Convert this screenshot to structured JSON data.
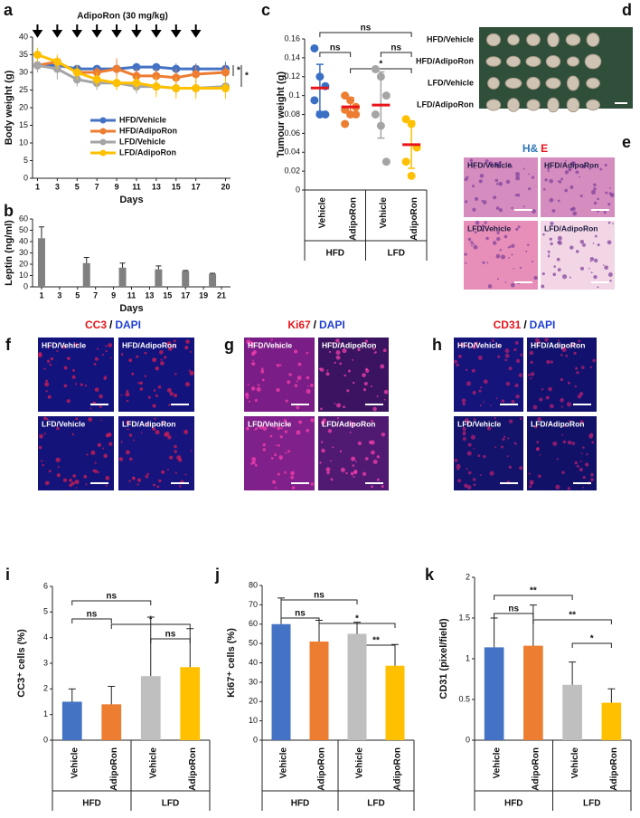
{
  "chart_data": [
    {
      "type": "line",
      "panel_label": "a",
      "annotation": "AdipoRon (30 mg/kg)",
      "dosing_days": [
        1,
        3,
        5,
        7,
        9,
        11,
        13,
        15,
        17
      ],
      "xlabel": "Days",
      "ylabel": "Body weight (g)",
      "x": [
        1,
        3,
        5,
        7,
        9,
        11,
        13,
        15,
        17,
        20
      ],
      "xlim": [
        0.5,
        20.5
      ],
      "xticks": [
        1,
        3,
        5,
        7,
        9,
        11,
        13,
        15,
        17,
        20
      ],
      "ylim": [
        0,
        40
      ],
      "yticks": [
        0,
        5,
        10,
        15,
        20,
        25,
        30,
        35,
        40
      ],
      "series": [
        {
          "name": "HFD/Vehicle",
          "color": "#4472c4",
          "values": [
            32,
            32,
            31,
            31,
            31,
            31.5,
            31.5,
            31,
            31,
            31
          ],
          "errors": [
            1,
            1.5,
            1,
            1,
            1,
            1,
            1,
            1.5,
            1.5,
            2
          ]
        },
        {
          "name": "HFD/AdipoRon",
          "color": "#ed7d31",
          "values": [
            32,
            33,
            30,
            30,
            31,
            29,
            29,
            28.5,
            29.5,
            30
          ],
          "errors": [
            1.5,
            1.5,
            2,
            1.5,
            3,
            2,
            2,
            2.5,
            2.5,
            2
          ]
        },
        {
          "name": "LFD/Vehicle",
          "color": "#a5a5a5",
          "values": [
            32,
            31,
            28,
            27,
            27,
            26,
            26,
            25.5,
            25.5,
            26
          ],
          "errors": [
            2,
            3,
            2,
            2,
            2,
            2,
            2,
            2,
            2,
            2
          ]
        },
        {
          "name": "LFD/AdipoRon",
          "color": "#ffc000",
          "values": [
            35,
            33,
            30,
            28,
            27,
            27,
            26,
            25.5,
            25.5,
            25.5
          ],
          "errors": [
            2,
            2,
            2,
            2,
            2,
            2,
            3,
            3,
            3,
            3
          ]
        }
      ],
      "significance": [
        "*",
        "*"
      ]
    },
    {
      "type": "bar",
      "panel_label": "b",
      "xlabel": "Days",
      "ylabel": "Leptin (ng/ml)",
      "x": [
        1,
        6,
        10,
        14,
        17,
        20
      ],
      "values": [
        43,
        21,
        17,
        15.5,
        14,
        11.5
      ],
      "errors": [
        10,
        5,
        4,
        3,
        0.5,
        0.5
      ],
      "color": "#808080",
      "xlim": [
        0,
        22
      ],
      "xticks": [
        1,
        3,
        5,
        7,
        9,
        11,
        13,
        15,
        17,
        19,
        21
      ],
      "ylim": [
        0,
        60
      ],
      "yticks": [
        0,
        10,
        20,
        30,
        40,
        50,
        60
      ]
    },
    {
      "type": "dot",
      "panel_label": "c",
      "ylabel": "Tumour weight (g)",
      "categories": [
        "Vehicle",
        "AdipoRon",
        "Vehicle",
        "AdipoRon"
      ],
      "groups": [
        "HFD",
        "LFD"
      ],
      "ylim": [
        0,
        0.16
      ],
      "yticks": [
        0,
        0.02,
        0.04,
        0.06,
        0.08,
        0.1,
        0.12,
        0.14,
        0.16
      ],
      "mean_color": "#e8141a",
      "series": [
        {
          "color": "#3a6fc4",
          "points": [
            0.15,
            0.12,
            0.11,
            0.095,
            0.08,
            0.08
          ],
          "mean": 0.108,
          "sd": 0.025
        },
        {
          "color": "#ed7d31",
          "points": [
            0.1,
            0.095,
            0.088,
            0.085,
            0.08,
            0.08,
            0.07
          ],
          "mean": 0.088,
          "sd": 0.01
        },
        {
          "color": "#a5a5a5",
          "points": [
            0.128,
            0.12,
            0.1,
            0.08,
            0.068,
            0.03
          ],
          "mean": 0.09,
          "sd": 0.035
        },
        {
          "color": "#ffc000",
          "points": [
            0.075,
            0.07,
            0.045,
            0.03,
            0.015
          ],
          "mean": 0.048,
          "sd": 0.025
        }
      ],
      "brackets": [
        {
          "text": "ns",
          "between": [
            0,
            3
          ]
        },
        {
          "text": "ns",
          "between": [
            0,
            1
          ]
        },
        {
          "text": "ns",
          "between": [
            2,
            3
          ]
        },
        {
          "text": "*",
          "between": [
            1,
            3
          ]
        }
      ]
    },
    {
      "type": "bar",
      "panel_label": "i",
      "ylabel": "CC3⁺ cells (%)",
      "categories": [
        "Vehicle",
        "AdipoRon",
        "Vehicle",
        "AdipoRon"
      ],
      "groups": [
        "HFD",
        "LFD"
      ],
      "values": [
        1.5,
        1.4,
        2.5,
        2.85
      ],
      "errors": [
        0.5,
        0.7,
        2.3,
        1.5
      ],
      "colors": [
        "#4472c4",
        "#ed7d31",
        "#bfbfbf",
        "#ffc000"
      ],
      "ylim": [
        0,
        6
      ],
      "yticks": [
        0,
        1,
        2,
        3,
        4,
        5,
        6
      ],
      "brackets": [
        {
          "text": "ns",
          "between": [
            0,
            2
          ]
        },
        {
          "text": "ns",
          "between": [
            0,
            1
          ]
        },
        {
          "text": "*",
          "between": [
            1,
            3
          ]
        },
        {
          "text": "ns",
          "between": [
            2,
            3
          ]
        }
      ]
    },
    {
      "type": "bar",
      "panel_label": "j",
      "ylabel": "Ki67⁺ cells (%)",
      "categories": [
        "Vehicle",
        "AdipoRon",
        "Vehicle",
        "AdipoRon"
      ],
      "groups": [
        "HFD",
        "LFD"
      ],
      "values": [
        60,
        51,
        55,
        38.5
      ],
      "errors": [
        13.5,
        11,
        6,
        11
      ],
      "colors": [
        "#4472c4",
        "#ed7d31",
        "#bfbfbf",
        "#ffc000"
      ],
      "ylim": [
        0,
        80
      ],
      "yticks": [
        0,
        10,
        20,
        30,
        40,
        50,
        60,
        70,
        80
      ],
      "brackets": [
        {
          "text": "ns",
          "between": [
            0,
            2
          ]
        },
        {
          "text": "ns",
          "between": [
            0,
            1
          ]
        },
        {
          "text": "*",
          "between": [
            1,
            3
          ]
        },
        {
          "text": "**",
          "between": [
            2,
            3
          ]
        }
      ]
    },
    {
      "type": "bar",
      "panel_label": "k",
      "ylabel": "CD31 (pixel/field)",
      "categories": [
        "Vehicle",
        "AdipoRon",
        "Vehicle",
        "AdipoRon"
      ],
      "groups": [
        "HFD",
        "LFD"
      ],
      "values": [
        1.14,
        1.16,
        0.68,
        0.46
      ],
      "errors": [
        0.36,
        0.5,
        0.28,
        0.17
      ],
      "colors": [
        "#4472c4",
        "#ed7d31",
        "#bfbfbf",
        "#ffc000"
      ],
      "ylim": [
        0,
        2
      ],
      "yticks": [
        0,
        0.5,
        1,
        1.5,
        2
      ],
      "brackets": [
        {
          "text": "**",
          "between": [
            0,
            2
          ]
        },
        {
          "text": "ns",
          "between": [
            0,
            1
          ]
        },
        {
          "text": "**",
          "between": [
            1,
            3
          ]
        },
        {
          "text": "*",
          "between": [
            2,
            3
          ]
        }
      ]
    }
  ],
  "images": [
    {
      "panel_label": "d",
      "rows": [
        "HFD/Vehicle",
        "HFD/AdipoRon",
        "LFD/Vehicle",
        "LFD/AdipoRon"
      ]
    },
    {
      "panel_label": "e",
      "title": [
        {
          "text": "H&",
          "color": "#2e75b6"
        },
        {
          "text": "E",
          "color": "#e8141a"
        }
      ],
      "tiles": [
        "HFD/Vehicle",
        "HFD/AdipoRon",
        "LFD/Vehicle",
        "LFD/AdipoRon"
      ]
    },
    {
      "panel_label": "f",
      "title": [
        {
          "text": "CC3",
          "color": "#e8141a"
        },
        {
          "text": "/",
          "color": "#000000"
        },
        {
          "text": "DAPI",
          "color": "#1f3fd0"
        }
      ],
      "tiles": [
        "HFD/Vehicle",
        "HFD/AdipoRon",
        "LFD/Vehicle",
        "LFD/AdipoRon"
      ]
    },
    {
      "panel_label": "g",
      "title": [
        {
          "text": "Ki67",
          "color": "#e8141a"
        },
        {
          "text": "/",
          "color": "#000000"
        },
        {
          "text": "DAPI",
          "color": "#1f3fd0"
        }
      ],
      "tiles": [
        "HFD/Vehicle",
        "HFD/AdipoRon",
        "LFD/Vehicle",
        "LFD/AdipoRon"
      ]
    },
    {
      "panel_label": "h",
      "title": [
        {
          "text": "CD31",
          "color": "#e8141a"
        },
        {
          "text": "/",
          "color": "#000000"
        },
        {
          "text": "DAPI",
          "color": "#1f3fd0"
        }
      ],
      "tiles": [
        "HFD/Vehicle",
        "HFD/AdipoRon",
        "LFD/Vehicle",
        "LFD/AdipoRon"
      ]
    }
  ]
}
